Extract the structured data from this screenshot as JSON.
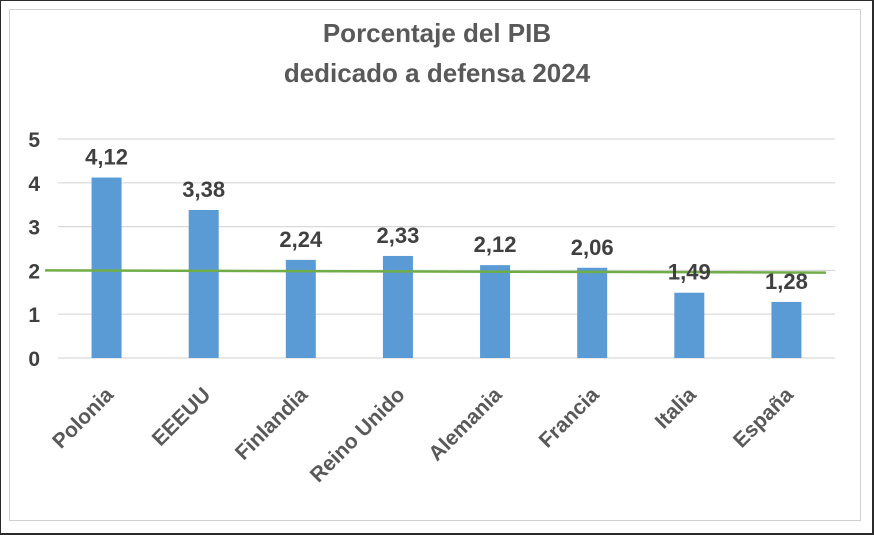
{
  "chart_data": {
    "type": "bar",
    "title_lines": [
      "Porcentaje del PIB",
      "dedicado a defensa 2024"
    ],
    "categories": [
      "Polonia",
      "EEEUU",
      "Finlandia",
      "Reino Unido",
      "Alemania",
      "Francia",
      "Italia",
      "España"
    ],
    "values": [
      4.12,
      3.38,
      2.24,
      2.33,
      2.12,
      2.06,
      1.49,
      1.28
    ],
    "data_labels": [
      "4,12",
      "3,38",
      "2,24",
      "2,33",
      "2,12",
      "2,06",
      "1,49",
      "1,28"
    ],
    "y_ticks": [
      "0",
      "1",
      "2",
      "3",
      "4",
      "5"
    ],
    "ylim": [
      0,
      5
    ],
    "grid": true,
    "reference_line": {
      "start": 2.0,
      "end": 1.95,
      "color": "#70ad47"
    },
    "bar_color": "#5b9bd5",
    "legend": "none"
  }
}
